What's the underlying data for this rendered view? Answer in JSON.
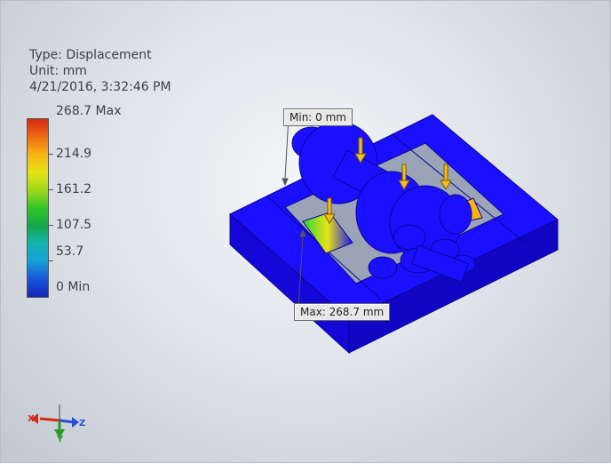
{
  "result_info": {
    "type_text": "Type: Displacement",
    "unit_text": "Unit: mm",
    "timestamp": "4/21/2016, 3:32:46 PM"
  },
  "legend": {
    "max_label": "268.7 Max",
    "ticks": [
      "214.9",
      "161.2",
      "107.5",
      "53.7"
    ],
    "min_label": "0 Min"
  },
  "callouts": {
    "min": "Min: 0 mm",
    "max": "Max: 268.7 mm"
  },
  "triad": {
    "x": "X",
    "y": "Y",
    "z": "Z"
  },
  "colors": {
    "model_blue": "#1a10ff",
    "max_red": "#d42a12",
    "min_blue": "#1426b8"
  }
}
